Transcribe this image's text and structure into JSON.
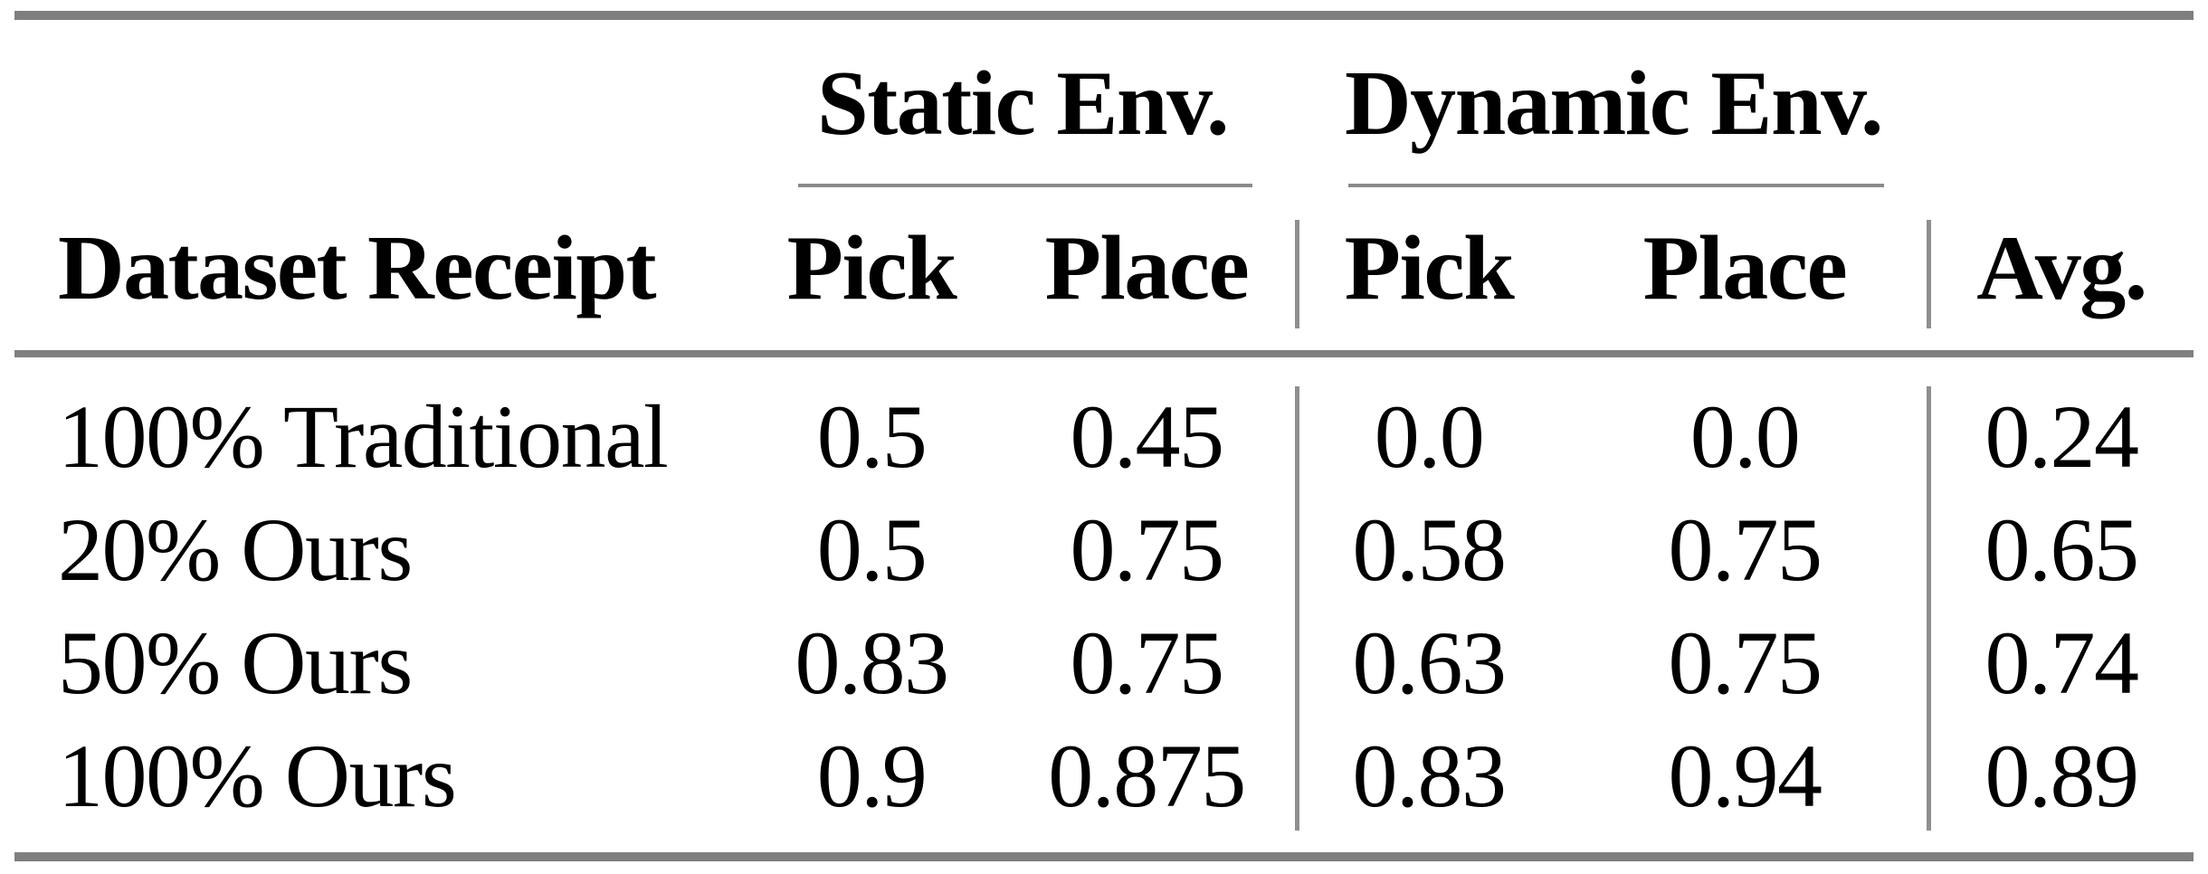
{
  "table": {
    "groups": [
      {
        "label": "Static Env."
      },
      {
        "label": "Dynamic Env."
      }
    ],
    "headers": {
      "row_label": "Dataset Receipt",
      "static_pick": "Pick",
      "static_place": "Place",
      "dynamic_pick": "Pick",
      "dynamic_place": "Place",
      "avg": "Avg."
    },
    "rows": [
      {
        "label": "100% Traditional",
        "static_pick": "0.5",
        "static_place": "0.45",
        "dynamic_pick": "0.0",
        "dynamic_place": "0.0",
        "avg": "0.24"
      },
      {
        "label": "20% Ours",
        "static_pick": "0.5",
        "static_place": "0.75",
        "dynamic_pick": "0.58",
        "dynamic_place": "0.75",
        "avg": "0.65"
      },
      {
        "label": "50% Ours",
        "static_pick": "0.83",
        "static_place": "0.75",
        "dynamic_pick": "0.63",
        "dynamic_place": "0.75",
        "avg": "0.74"
      },
      {
        "label": "100% Ours",
        "static_pick": "0.9",
        "static_place": "0.875",
        "dynamic_pick": "0.83",
        "dynamic_place": "0.94",
        "avg": "0.89"
      }
    ]
  },
  "colors": {
    "rule_thick": "#7f7f7f",
    "rule_thin": "#8a8a8a",
    "rule_vertical": "#8f8f8f",
    "text": "#000000",
    "background": "#ffffff"
  }
}
